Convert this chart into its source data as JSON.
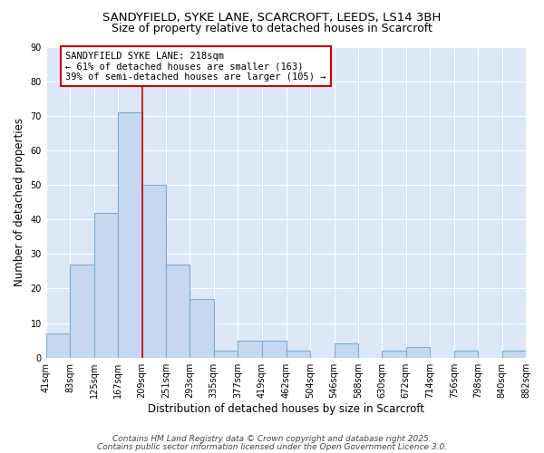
{
  "title1": "SANDYFIELD, SYKE LANE, SCARCROFT, LEEDS, LS14 3BH",
  "title2": "Size of property relative to detached houses in Scarcroft",
  "xlabel": "Distribution of detached houses by size in Scarcroft",
  "ylabel": "Number of detached properties",
  "bar_heights": [
    7,
    27,
    42,
    71,
    50,
    27,
    17,
    2,
    5,
    5,
    2,
    0,
    4,
    0,
    2,
    3,
    0,
    2,
    0,
    2
  ],
  "bin_edges": [
    41,
    83,
    125,
    167,
    209,
    251,
    293,
    335,
    377,
    419,
    462,
    504,
    546,
    588,
    630,
    672,
    714,
    756,
    798,
    840,
    882
  ],
  "bin_labels": [
    "41sqm",
    "83sqm",
    "125sqm",
    "167sqm",
    "209sqm",
    "251sqm",
    "293sqm",
    "335sqm",
    "377sqm",
    "419sqm",
    "462sqm",
    "504sqm",
    "546sqm",
    "588sqm",
    "630sqm",
    "672sqm",
    "714sqm",
    "756sqm",
    "798sqm",
    "840sqm",
    "882sqm"
  ],
  "bar_color": "#c5d8f0",
  "bar_edge_color": "#7bafd4",
  "red_line_x": 209,
  "annotation_text_line1": "SANDYFIELD SYKE LANE: 218sqm",
  "annotation_text_line2": "← 61% of detached houses are smaller (163)",
  "annotation_text_line3": "39% of semi-detached houses are larger (105) →",
  "annotation_box_color": "#cc0000",
  "background_color": "#dce8f8",
  "grid_color": "#ffffff",
  "ylim": [
    0,
    90
  ],
  "yticks": [
    0,
    10,
    20,
    30,
    40,
    50,
    60,
    70,
    80,
    90
  ],
  "footer1": "Contains HM Land Registry data © Crown copyright and database right 2025.",
  "footer2": "Contains public sector information licensed under the Open Government Licence 3.0.",
  "title_fontsize": 9.5,
  "title2_fontsize": 9,
  "axis_label_fontsize": 8.5,
  "tick_fontsize": 7,
  "annotation_fontsize": 7.5,
  "footer_fontsize": 6.5
}
